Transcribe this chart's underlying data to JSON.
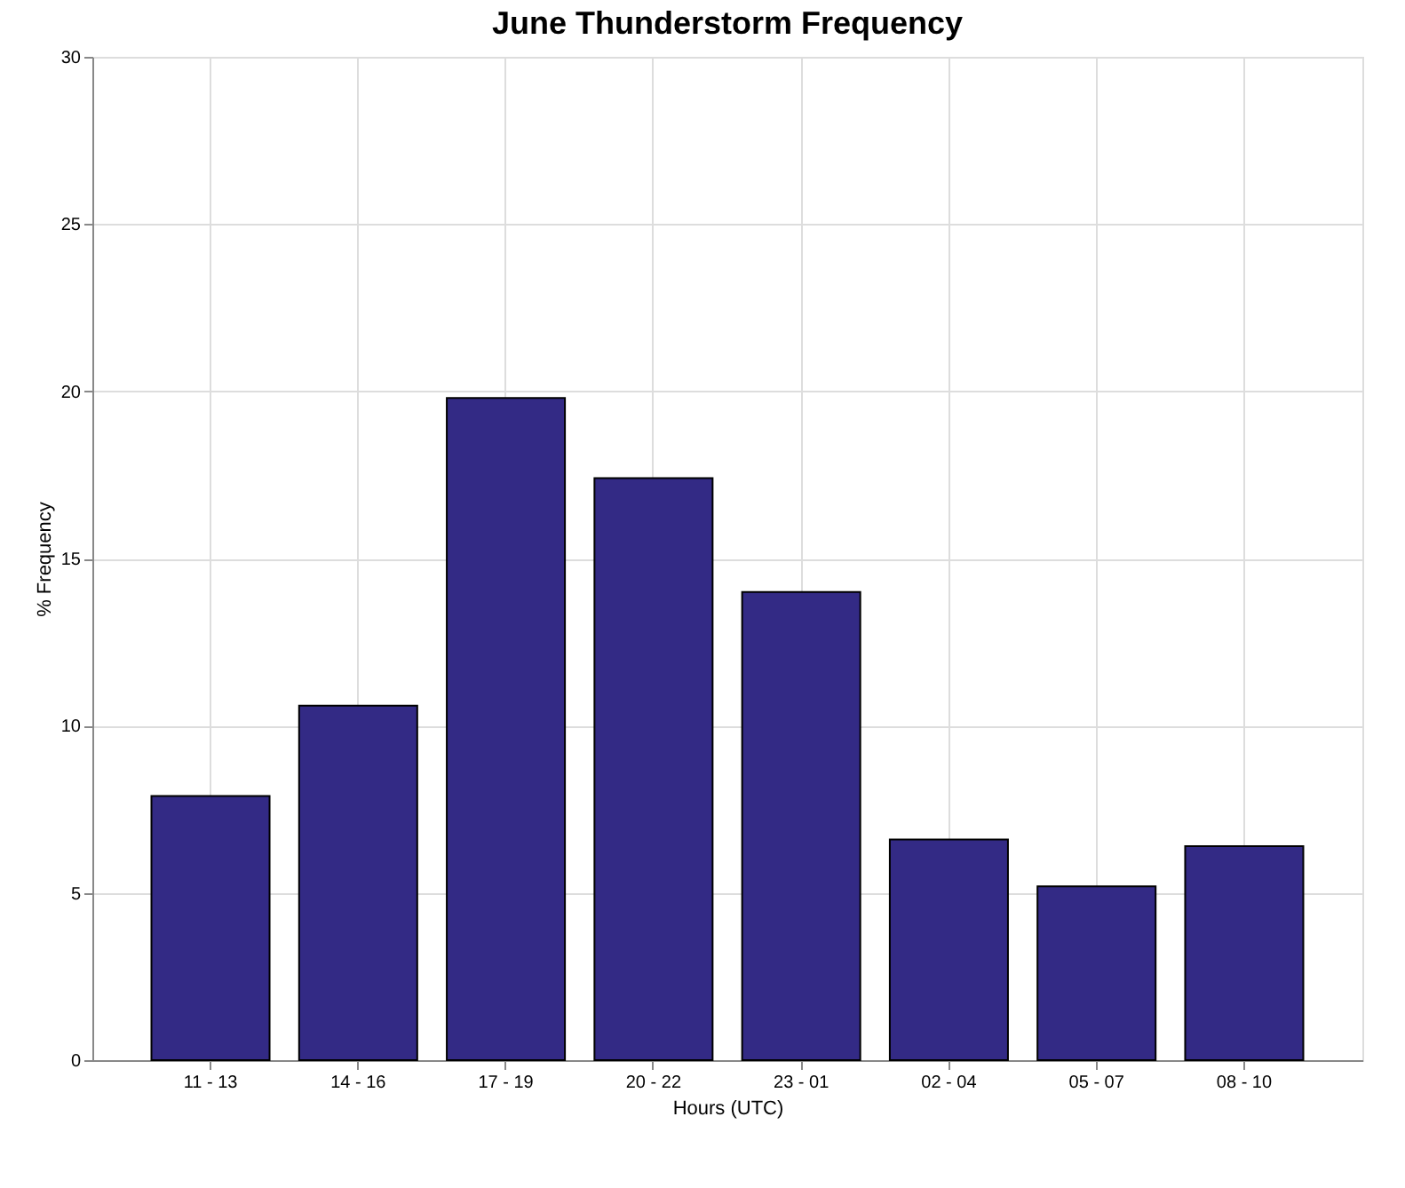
{
  "chart_data": {
    "type": "bar",
    "title": "June Thunderstorm Frequency",
    "xlabel": "Hours (UTC)",
    "ylabel": "% Frequency",
    "categories": [
      "11 - 13",
      "14 - 16",
      "17 - 19",
      "20 - 22",
      "23 - 01",
      "02 - 04",
      "05 - 07",
      "08 - 10"
    ],
    "values": [
      7.9,
      10.6,
      19.8,
      17.4,
      14.0,
      6.6,
      5.2,
      6.4
    ],
    "color": "#332a85",
    "ylim": [
      0,
      30
    ],
    "yticks": [
      0,
      5,
      10,
      15,
      20,
      25,
      30
    ],
    "grid": true
  }
}
